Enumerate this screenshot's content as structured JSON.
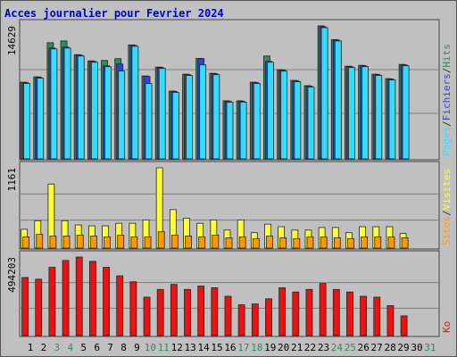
{
  "chart_data": [
    {
      "type": "bar",
      "title": "Acces journalier pour Fevrier 2024",
      "separator": "/",
      "series": [
        {
          "name": "Pages",
          "color": "#33ddff",
          "values": [
            8204,
            8797,
            12059,
            12158,
            11268,
            10576,
            10082,
            9588,
            12356,
            8204,
            9885,
            7216,
            9094,
            10280,
            9193,
            6128,
            6128,
            8204,
            10576,
            9588,
            8402,
            7809,
            14431,
            12949,
            9983,
            10082,
            9094,
            8599,
            10181,
            null,
            null
          ]
        },
        {
          "name": "Fichiers",
          "color": "#3344cc",
          "values": [
            8304,
            8897,
            12159,
            12258,
            11368,
            10676,
            10182,
            10379,
            12456,
            8995,
            9985,
            7316,
            9194,
            10972,
            9293,
            6228,
            6228,
            8304,
            10676,
            9688,
            8502,
            7909,
            14531,
            13049,
            10083,
            10182,
            9194,
            8699,
            10281,
            null,
            null
          ]
        },
        {
          "name": "Hits",
          "color": "#2e8b5e",
          "values": [
            8354,
            8947,
            12751,
            12949,
            11418,
            10726,
            10774,
            10972,
            12506,
            9045,
            10035,
            7366,
            9244,
            11000,
            9343,
            6278,
            6278,
            8354,
            11268,
            9738,
            8552,
            7959,
            14629,
            13099,
            10133,
            10232,
            9244,
            8749,
            10331,
            null,
            null
          ]
        }
      ],
      "ylim": [
        0,
        14629
      ],
      "yticks": [
        14629
      ],
      "grid": true
    },
    {
      "type": "bar",
      "separator": "/",
      "series": [
        {
          "name": "Sites",
          "color": "#ff9900",
          "values": [
            139,
            177,
            152,
            152,
            165,
            152,
            139,
            165,
            139,
            139,
            215,
            165,
            152,
            139,
            165,
            126,
            139,
            114,
            152,
            126,
            114,
            139,
            139,
            126,
            114,
            139,
            139,
            139,
            126,
            null,
            null
          ]
        },
        {
          "name": "Visites",
          "color": "#ffff33",
          "values": [
            252,
            379,
            921,
            379,
            316,
            303,
            303,
            341,
            341,
            391,
            1161,
            543,
            416,
            341,
            391,
            240,
            391,
            202,
            328,
            290,
            240,
            240,
            278,
            278,
            202,
            290,
            290,
            290,
            189,
            null,
            null
          ]
        }
      ],
      "ylim": [
        0,
        1161
      ],
      "yticks": [
        1161
      ],
      "grid": true
    },
    {
      "type": "bar",
      "series": [
        {
          "name": "Ko",
          "color": "#ee1111",
          "values": [
            362406,
            351424,
            428298,
            472226,
            494203,
            466735,
            428298,
            373388,
            334951,
            236113,
            285532,
            318478,
            285532,
            307496,
            296514,
            241604,
            186694,
            192185,
            225131,
            296514,
            269059,
            285532,
            323969,
            285532,
            269059,
            241604,
            236113,
            181203,
            115311,
            null,
            null
          ]
        }
      ],
      "ylim": [
        0,
        494203
      ],
      "yticks": [
        494203
      ],
      "grid": true,
      "categories": [
        "1",
        "2",
        "3",
        "4",
        "5",
        "6",
        "7",
        "8",
        "9",
        "10",
        "11",
        "12",
        "13",
        "14",
        "15",
        "16",
        "17",
        "18",
        "19",
        "20",
        "21",
        "22",
        "23",
        "24",
        "25",
        "26",
        "27",
        "28",
        "29",
        "30",
        "31"
      ],
      "category_colors": [
        "#000000",
        "#000000",
        "#2e8b5e",
        "#2e8b5e",
        "#000000",
        "#000000",
        "#000000",
        "#000000",
        "#000000",
        "#2e8b5e",
        "#2e8b5e",
        "#000000",
        "#000000",
        "#000000",
        "#000000",
        "#000000",
        "#2e8b5e",
        "#2e8b5e",
        "#000000",
        "#000000",
        "#000000",
        "#000000",
        "#000000",
        "#2e8b5e",
        "#2e8b5e",
        "#000000",
        "#000000",
        "#000000",
        "#000000",
        "#000000",
        "#2e8b5e"
      ]
    }
  ]
}
